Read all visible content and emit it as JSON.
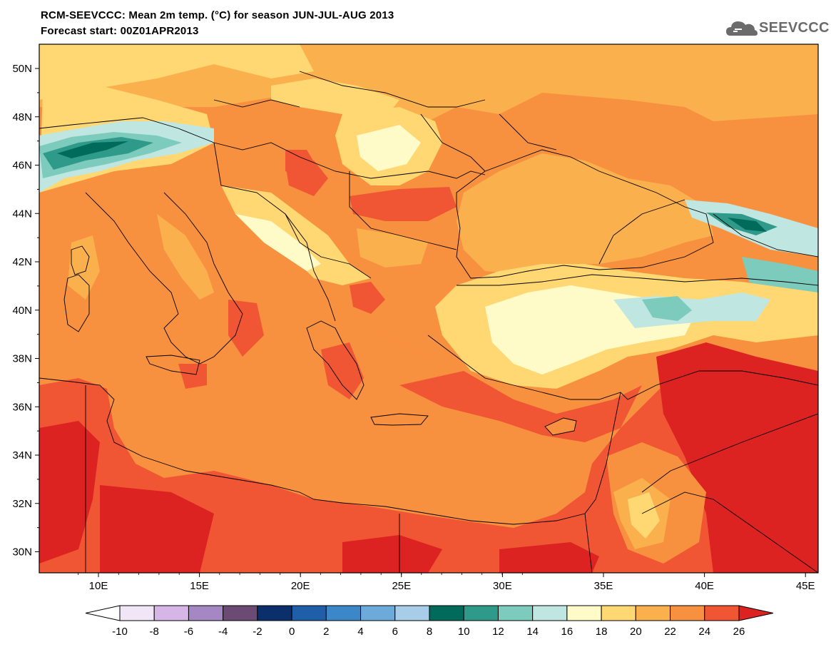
{
  "header": {
    "title_line1": "RCM-SEEVCCC: Mean 2m temp. (°C) for season JUN-JUL-AUG 2013",
    "title_line2": "Forecast start: 00Z01APR2013",
    "logo_text": "SEEVCCC",
    "logo_icon": "cloud-icon"
  },
  "map": {
    "lat_labels": [
      "50N",
      "48N",
      "46N",
      "44N",
      "42N",
      "40N",
      "38N",
      "36N",
      "34N",
      "32N",
      "30N"
    ],
    "lon_labels": [
      "10E",
      "15E",
      "20E",
      "25E",
      "30E",
      "35E",
      "40E",
      "45E"
    ],
    "background_color": "#f8913f",
    "coastline_color": "#000000"
  },
  "colorbar": {
    "labels": [
      "-10",
      "-8",
      "-6",
      "-4",
      "-2",
      "0",
      "2",
      "4",
      "6",
      "8",
      "10",
      "12",
      "14",
      "16",
      "18",
      "20",
      "22",
      "24",
      "26"
    ],
    "colors": [
      "#ffffff",
      "#f0e6f6",
      "#d6b6e6",
      "#a587c4",
      "#6b4a73",
      "#0a2f6b",
      "#1f5ea8",
      "#3c87c7",
      "#6cabd9",
      "#a7cde8",
      "#006b5a",
      "#2f9a8a",
      "#7ccbbd",
      "#c0e6e1",
      "#fffbc8",
      "#ffd873",
      "#fbb04e",
      "#f8913f",
      "#f05534",
      "#dd2222"
    ]
  }
}
